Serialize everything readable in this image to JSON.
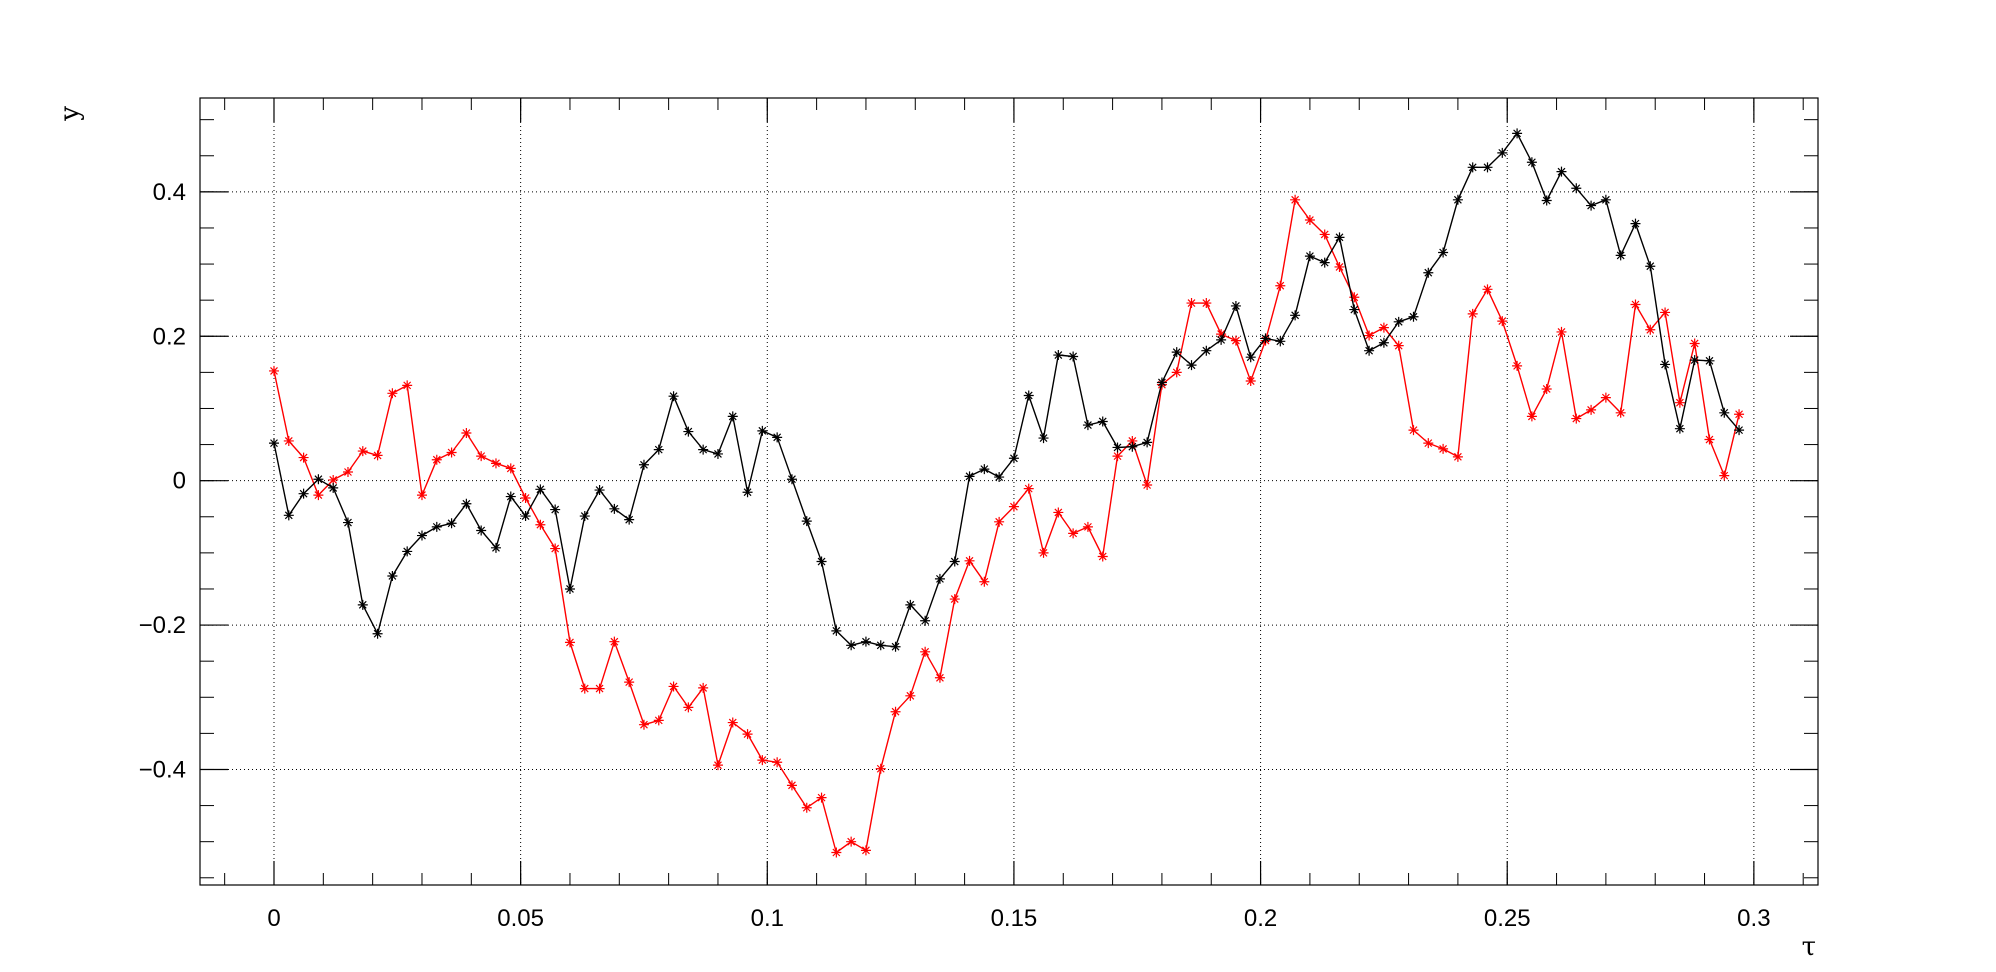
{
  "chart_data": {
    "type": "line",
    "title": "",
    "xlabel": "τ",
    "ylabel": "y",
    "xlim": [
      -0.015,
      0.313
    ],
    "ylim": [
      -0.56,
      0.53
    ],
    "grid": true,
    "x_ticks": [
      0,
      0.05,
      0.1,
      0.15,
      0.2,
      0.25,
      0.3
    ],
    "x_tick_labels": [
      "0",
      "0.05",
      "0.1",
      "0.15",
      "0.2",
      "0.25",
      "0.3"
    ],
    "y_ticks": [
      -0.4,
      -0.2,
      0,
      0.2,
      0.4
    ],
    "y_tick_labels": [
      "−0.4",
      "−0.2",
      "0",
      "0.2",
      "0.4"
    ],
    "marker": "star",
    "x": [
      0,
      0.003,
      0.006,
      0.009,
      0.012,
      0.015,
      0.018,
      0.021,
      0.024,
      0.027,
      0.03,
      0.033,
      0.036,
      0.039,
      0.042,
      0.045,
      0.048,
      0.051,
      0.054,
      0.057,
      0.06,
      0.063,
      0.066,
      0.069,
      0.072,
      0.075,
      0.078,
      0.081,
      0.084,
      0.087,
      0.09,
      0.093,
      0.096,
      0.099,
      0.102,
      0.105,
      0.108,
      0.111,
      0.114,
      0.117,
      0.12,
      0.123,
      0.126,
      0.129,
      0.132,
      0.135,
      0.138,
      0.141,
      0.144,
      0.147,
      0.15,
      0.153,
      0.156,
      0.159,
      0.162,
      0.165,
      0.168,
      0.171,
      0.174,
      0.177,
      0.18,
      0.183,
      0.186,
      0.189,
      0.192,
      0.195,
      0.198,
      0.201,
      0.204,
      0.207,
      0.21,
      0.213,
      0.216,
      0.219,
      0.222,
      0.225,
      0.228,
      0.231,
      0.234,
      0.237,
      0.24,
      0.243,
      0.246,
      0.249,
      0.252,
      0.255,
      0.258,
      0.261,
      0.264,
      0.267,
      0.27,
      0.273,
      0.276,
      0.279,
      0.282,
      0.285,
      0.288,
      0.291,
      0.294,
      0.297
    ],
    "series": [
      {
        "color": "#000000",
        "values": [
          0.052,
          -0.048,
          -0.018,
          0.002,
          -0.01,
          -0.058,
          -0.172,
          -0.212,
          -0.132,
          -0.098,
          -0.076,
          -0.064,
          -0.059,
          -0.032,
          -0.069,
          -0.093,
          -0.022,
          -0.049,
          -0.012,
          -0.04,
          -0.15,
          -0.049,
          -0.013,
          -0.039,
          -0.054,
          0.022,
          0.043,
          0.117,
          0.068,
          0.043,
          0.037,
          0.089,
          -0.016,
          0.069,
          0.06,
          0.002,
          -0.056,
          -0.112,
          -0.208,
          -0.228,
          -0.223,
          -0.228,
          -0.23,
          -0.172,
          -0.194,
          -0.136,
          -0.112,
          0.006,
          0.016,
          0.005,
          0.031,
          0.118,
          0.059,
          0.174,
          0.172,
          0.077,
          0.082,
          0.046,
          0.047,
          0.053,
          0.136,
          0.178,
          0.16,
          0.18,
          0.195,
          0.242,
          0.171,
          0.197,
          0.193,
          0.229,
          0.311,
          0.302,
          0.337,
          0.237,
          0.18,
          0.191,
          0.22,
          0.227,
          0.288,
          0.316,
          0.389,
          0.434,
          0.434,
          0.454,
          0.481,
          0.441,
          0.388,
          0.428,
          0.405,
          0.381,
          0.389,
          0.312,
          0.356,
          0.297,
          0.161,
          0.072,
          0.167,
          0.166,
          0.094,
          0.07
        ]
      },
      {
        "color": "#ff0000",
        "values": [
          0.152,
          0.055,
          0.032,
          -0.02,
          0.001,
          0.012,
          0.041,
          0.035,
          0.121,
          0.132,
          -0.02,
          0.029,
          0.039,
          0.066,
          0.034,
          0.024,
          0.017,
          -0.024,
          -0.061,
          -0.094,
          -0.224,
          -0.288,
          -0.288,
          -0.223,
          -0.279,
          -0.338,
          -0.332,
          -0.285,
          -0.314,
          -0.287,
          -0.394,
          -0.335,
          -0.351,
          -0.387,
          -0.39,
          -0.422,
          -0.453,
          -0.439,
          -0.515,
          -0.5,
          -0.512,
          -0.399,
          -0.32,
          -0.298,
          -0.237,
          -0.273,
          -0.164,
          -0.111,
          -0.14,
          -0.057,
          -0.036,
          -0.011,
          -0.1,
          -0.044,
          -0.073,
          -0.064,
          -0.105,
          0.034,
          0.055,
          -0.006,
          0.133,
          0.15,
          0.246,
          0.246,
          0.203,
          0.194,
          0.138,
          0.194,
          0.27,
          0.389,
          0.361,
          0.341,
          0.296,
          0.254,
          0.201,
          0.212,
          0.187,
          0.07,
          0.052,
          0.044,
          0.033,
          0.231,
          0.265,
          0.221,
          0.159,
          0.089,
          0.127,
          0.206,
          0.086,
          0.098,
          0.115,
          0.094,
          0.244,
          0.209,
          0.233,
          0.108,
          0.19,
          0.057,
          0.007,
          0.092
        ]
      }
    ]
  }
}
